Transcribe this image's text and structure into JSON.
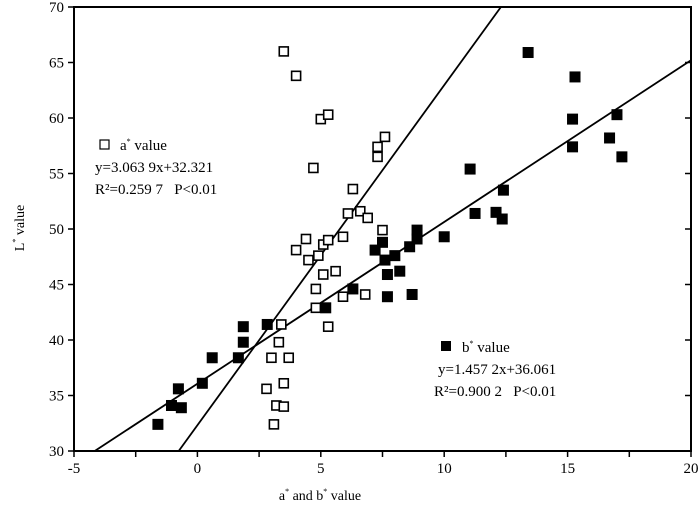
{
  "chart_data": {
    "type": "scatter",
    "title": "",
    "xlabel": "a* and b* value",
    "ylabel": "L* value",
    "xlim": [
      -5,
      20
    ],
    "ylim": [
      30,
      70
    ],
    "xticks": [
      "-5",
      "0",
      "5",
      "10",
      "15",
      "20"
    ],
    "yticks": [
      "30",
      "35",
      "40",
      "45",
      "50",
      "55",
      "60",
      "65",
      "70"
    ],
    "grid": false,
    "series": [
      {
        "name": "a* value",
        "marker": "open-square",
        "equation": "y=3.063 9x+32.321",
        "r2": "R²=0.259 7   P<0.01",
        "slope": 3.0639,
        "intercept": 32.321,
        "points": [
          [
            3.5,
            66.0
          ],
          [
            4.0,
            63.8
          ],
          [
            5.0,
            59.9
          ],
          [
            5.3,
            60.3
          ],
          [
            7.6,
            58.3
          ],
          [
            7.3,
            57.4
          ],
          [
            7.3,
            56.5
          ],
          [
            4.7,
            55.5
          ],
          [
            6.3,
            53.6
          ],
          [
            6.1,
            51.4
          ],
          [
            6.6,
            51.6
          ],
          [
            6.9,
            51.0
          ],
          [
            7.5,
            49.9
          ],
          [
            4.4,
            49.1
          ],
          [
            4.0,
            48.1
          ],
          [
            5.1,
            48.6
          ],
          [
            5.3,
            49.0
          ],
          [
            5.9,
            49.3
          ],
          [
            4.5,
            47.2
          ],
          [
            4.9,
            47.6
          ],
          [
            5.1,
            45.9
          ],
          [
            5.6,
            46.2
          ],
          [
            4.8,
            44.6
          ],
          [
            5.9,
            43.9
          ],
          [
            6.8,
            44.1
          ],
          [
            4.8,
            42.9
          ],
          [
            5.3,
            41.2
          ],
          [
            3.4,
            41.4
          ],
          [
            3.3,
            39.8
          ],
          [
            3.0,
            38.4
          ],
          [
            3.7,
            38.4
          ],
          [
            3.5,
            36.1
          ],
          [
            2.8,
            35.6
          ],
          [
            3.2,
            34.1
          ],
          [
            3.5,
            34.0
          ],
          [
            3.1,
            32.4
          ]
        ]
      },
      {
        "name": "b* value",
        "marker": "filled-square",
        "equation": "y=1.457 2x+36.061",
        "r2": "R²=0.900 2   P<0.01",
        "slope": 1.4572,
        "intercept": 36.061,
        "points": [
          [
            -1.6,
            32.4
          ],
          [
            -1.05,
            34.1
          ],
          [
            -0.65,
            33.9
          ],
          [
            -0.77,
            35.6
          ],
          [
            0.2,
            36.1
          ],
          [
            0.6,
            38.4
          ],
          [
            1.66,
            38.4
          ],
          [
            1.86,
            39.8
          ],
          [
            1.86,
            41.2
          ],
          [
            2.83,
            41.4
          ],
          [
            5.2,
            42.9
          ],
          [
            6.3,
            44.6
          ],
          [
            7.7,
            43.9
          ],
          [
            7.2,
            48.1
          ],
          [
            7.5,
            48.8
          ],
          [
            7.6,
            47.2
          ],
          [
            7.7,
            45.9
          ],
          [
            8.0,
            47.6
          ],
          [
            13.4,
            65.9
          ],
          [
            15.3,
            63.7
          ],
          [
            15.2,
            59.9
          ],
          [
            15.2,
            57.4
          ],
          [
            17.0,
            60.3
          ],
          [
            16.7,
            58.2
          ],
          [
            17.2,
            56.5
          ],
          [
            11.05,
            55.4
          ],
          [
            12.4,
            53.5
          ],
          [
            11.25,
            51.4
          ],
          [
            12.1,
            51.5
          ],
          [
            12.35,
            50.9
          ],
          [
            8.9,
            49.9
          ],
          [
            8.9,
            49.1
          ],
          [
            10.0,
            49.3
          ],
          [
            8.6,
            48.4
          ],
          [
            8.2,
            46.2
          ],
          [
            8.7,
            44.1
          ]
        ]
      }
    ],
    "legend": {
      "a_label": "a* value",
      "b_label": "b* value"
    }
  }
}
